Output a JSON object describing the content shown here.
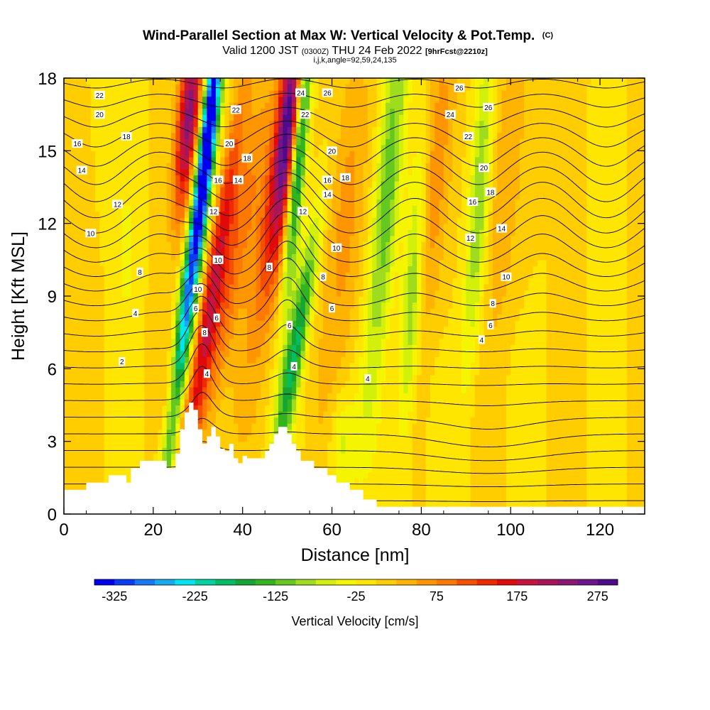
{
  "chart_data": {
    "type": "heatmap",
    "title": "Wind-Parallel Section at Max W: Vertical Velocity & Pot.Temp.",
    "title_mark": "(C)",
    "subtitle_main": "Valid 1200 JST ",
    "subtitle_small": "(0300Z)",
    "subtitle_main2": " THU 24 Feb 2022 ",
    "subtitle_fcst": "[9hrFcst@2210z]",
    "subtitle2": "i,j,k,angle=92,59,24,135",
    "xlabel": "Distance [nm]",
    "ylabel": "Height [Kft MSL]",
    "xlim": [
      0,
      130
    ],
    "ylim": [
      0,
      18
    ],
    "x_ticks": [
      0,
      20,
      40,
      60,
      80,
      100,
      120
    ],
    "y_ticks": [
      0,
      3,
      6,
      9,
      12,
      15,
      18
    ],
    "x_tick_labels": [
      "0",
      "20",
      "40",
      "60",
      "80",
      "100",
      "120"
    ],
    "y_tick_labels": [
      "0",
      "3",
      "6",
      "9",
      "12",
      "15",
      "18"
    ],
    "colorbar": {
      "label": "Vertical Velocity [cm/s]",
      "min": -350,
      "max": 300,
      "tick_values": [
        -325,
        -225,
        -125,
        -25,
        75,
        175,
        275
      ],
      "tick_labels": [
        "-325",
        "-225",
        "-125",
        "-25",
        "75",
        "175",
        "275"
      ],
      "colors": [
        "#0000f0",
        "#0a3cf5",
        "#1478f5",
        "#14aaf0",
        "#00e6f0",
        "#00d2a0",
        "#00be64",
        "#14a532",
        "#32b41e",
        "#64c81e",
        "#a0dc1e",
        "#d2f00a",
        "#f5f500",
        "#ffe600",
        "#ffcd00",
        "#ffb400",
        "#ff9600",
        "#ff7800",
        "#f55000",
        "#f02800",
        "#e10a0a",
        "#c8143c",
        "#aa145a",
        "#8c1473",
        "#6e148c",
        "#500a8c"
      ]
    },
    "terrain": [
      [
        0,
        1.0
      ],
      [
        5,
        1.0
      ],
      [
        5,
        1.3
      ],
      [
        10,
        1.3
      ],
      [
        10,
        1.6
      ],
      [
        14,
        1.6
      ],
      [
        14,
        1.3
      ],
      [
        15,
        1.3
      ],
      [
        15,
        1.9
      ],
      [
        17,
        1.9
      ],
      [
        17,
        2.2
      ],
      [
        23,
        2.2
      ],
      [
        23,
        1.9
      ],
      [
        25,
        1.9
      ],
      [
        25,
        2.5
      ],
      [
        26,
        2.5
      ],
      [
        26,
        3.5
      ],
      [
        27,
        3.5
      ],
      [
        27,
        4.2
      ],
      [
        28,
        4.2
      ],
      [
        28,
        4.6
      ],
      [
        29,
        4.6
      ],
      [
        29,
        4.3
      ],
      [
        30,
        4.3
      ],
      [
        30,
        3.5
      ],
      [
        31,
        3.5
      ],
      [
        31,
        2.9
      ],
      [
        32,
        2.9
      ],
      [
        32,
        3.2
      ],
      [
        33,
        3.2
      ],
      [
        33,
        3.6
      ],
      [
        34,
        3.6
      ],
      [
        34,
        3.2
      ],
      [
        35,
        3.2
      ],
      [
        35,
        2.7
      ],
      [
        36,
        2.7
      ],
      [
        36,
        2.6
      ],
      [
        37,
        2.6
      ],
      [
        37,
        2.9
      ],
      [
        38,
        2.9
      ],
      [
        38,
        2.3
      ],
      [
        39,
        2.3
      ],
      [
        39,
        2.1
      ],
      [
        40,
        2.1
      ],
      [
        40,
        2.4
      ],
      [
        41,
        2.4
      ],
      [
        41,
        2.3
      ],
      [
        45,
        2.3
      ],
      [
        45,
        2.6
      ],
      [
        46,
        2.6
      ],
      [
        46,
        2.9
      ],
      [
        47,
        2.9
      ],
      [
        47,
        3.3
      ],
      [
        48,
        3.3
      ],
      [
        48,
        3.6
      ],
      [
        50,
        3.6
      ],
      [
        50,
        3.3
      ],
      [
        51,
        3.3
      ],
      [
        51,
        2.9
      ],
      [
        52,
        2.9
      ],
      [
        52,
        2.6
      ],
      [
        53,
        2.6
      ],
      [
        53,
        2.2
      ],
      [
        56,
        2.2
      ],
      [
        56,
        1.9
      ],
      [
        59,
        1.9
      ],
      [
        59,
        1.6
      ],
      [
        61,
        1.6
      ],
      [
        61,
        1.3
      ],
      [
        64,
        1.3
      ],
      [
        64,
        1.0
      ],
      [
        67,
        1.0
      ],
      [
        67,
        0.6
      ],
      [
        70,
        0.6
      ],
      [
        70,
        0.3
      ],
      [
        130,
        0.3
      ]
    ],
    "w_features": [
      {
        "x": 29.5,
        "z": 11.5,
        "sx": 1.4,
        "sz": 7.0,
        "w": -320,
        "tilt": 0.3
      },
      {
        "x": 33.0,
        "z": 9.0,
        "sx": 1.6,
        "sz": 6.0,
        "w": 170,
        "tilt": 0.38
      },
      {
        "x": 37.0,
        "z": 9.5,
        "sx": 2.2,
        "sz": 6.0,
        "w": 90,
        "tilt": 0.45
      },
      {
        "x": 28.0,
        "z": 16.5,
        "sx": 1.8,
        "sz": 3.0,
        "w": 240,
        "tilt": 0.2
      },
      {
        "x": 32.5,
        "z": 16.0,
        "sx": 1.2,
        "sz": 3.0,
        "w": -160,
        "tilt": 0.2
      },
      {
        "x": 52.5,
        "z": 15.0,
        "sx": 1.3,
        "sz": 4.0,
        "w": -260,
        "tilt": 0.2
      },
      {
        "x": 50.5,
        "z": 16.5,
        "sx": 1.8,
        "sz": 3.0,
        "w": 250,
        "tilt": 0.25
      },
      {
        "x": 47.0,
        "z": 12.0,
        "sx": 3.0,
        "sz": 4.0,
        "w": 120,
        "tilt": 0.35
      },
      {
        "x": 52.0,
        "z": 7.0,
        "sx": 1.5,
        "sz": 3.5,
        "w": -180,
        "tilt": 0.4
      },
      {
        "x": 72.5,
        "z": 13.5,
        "sx": 2.0,
        "sz": 6.0,
        "w": -120,
        "tilt": 0.2
      },
      {
        "x": 78.0,
        "z": 9.0,
        "sx": 1.6,
        "sz": 4.5,
        "w": -110,
        "tilt": 0.15
      },
      {
        "x": 93.0,
        "z": 13.0,
        "sx": 1.6,
        "sz": 5.0,
        "w": -100,
        "tilt": 0.15
      },
      {
        "x": 63.0,
        "z": 12.0,
        "sx": 3.0,
        "sz": 5.0,
        "w": 60,
        "tilt": 0.2
      },
      {
        "x": 83.0,
        "z": 14.0,
        "sx": 2.5,
        "sz": 5.0,
        "w": 70,
        "tilt": 0.2
      },
      {
        "x": 99.0,
        "z": 14.0,
        "sx": 2.5,
        "sz": 5.0,
        "w": 50,
        "tilt": 0.2
      },
      {
        "x": 25.0,
        "z": 5.0,
        "sx": 2.0,
        "sz": 1.5,
        "w": 60,
        "tilt": 0.0
      },
      {
        "x": 62.0,
        "z": 3.0,
        "sx": 2.0,
        "sz": 1.5,
        "w": -60,
        "tilt": 0.0
      },
      {
        "x": 14.0,
        "z": 11.0,
        "sx": 1.5,
        "sz": 2.0,
        "w": -40,
        "tilt": 0.0
      }
    ],
    "contour_levels": [
      2,
      3,
      4,
      5,
      6,
      7,
      8,
      9,
      10,
      11,
      12,
      13,
      14,
      15,
      16,
      17,
      18,
      19,
      20,
      21,
      22,
      23,
      24,
      25,
      26,
      27,
      28
    ],
    "contour_labels": [
      {
        "x": 4,
        "z": 14.2,
        "text": "14"
      },
      {
        "x": 3,
        "z": 15.3,
        "text": "16"
      },
      {
        "x": 6,
        "z": 11.6,
        "text": "10"
      },
      {
        "x": 8,
        "z": 17.3,
        "text": "22"
      },
      {
        "x": 8,
        "z": 16.5,
        "text": "20"
      },
      {
        "x": 14,
        "z": 15.6,
        "text": "18"
      },
      {
        "x": 12,
        "z": 12.8,
        "text": "12"
      },
      {
        "x": 17,
        "z": 10.0,
        "text": "8"
      },
      {
        "x": 16,
        "z": 8.3,
        "text": "4"
      },
      {
        "x": 13,
        "z": 6.3,
        "text": "2"
      },
      {
        "x": 30,
        "z": 9.3,
        "text": "10"
      },
      {
        "x": 29.5,
        "z": 8.5,
        "text": "6"
      },
      {
        "x": 34.2,
        "z": 8.1,
        "text": "6"
      },
      {
        "x": 31.5,
        "z": 7.5,
        "text": "8"
      },
      {
        "x": 32,
        "z": 5.8,
        "text": "4"
      },
      {
        "x": 34.5,
        "z": 10.5,
        "text": "10"
      },
      {
        "x": 33.5,
        "z": 12.5,
        "text": "12"
      },
      {
        "x": 34.5,
        "z": 13.8,
        "text": "16"
      },
      {
        "x": 39,
        "z": 13.8,
        "text": "14"
      },
      {
        "x": 37,
        "z": 15.3,
        "text": "20"
      },
      {
        "x": 41,
        "z": 14.7,
        "text": "18"
      },
      {
        "x": 38.5,
        "z": 16.7,
        "text": "22"
      },
      {
        "x": 46,
        "z": 10.2,
        "text": "8"
      },
      {
        "x": 50.5,
        "z": 7.8,
        "text": "6"
      },
      {
        "x": 51.5,
        "z": 6.1,
        "text": "4"
      },
      {
        "x": 53,
        "z": 17.4,
        "text": "24"
      },
      {
        "x": 54,
        "z": 16.5,
        "text": "22"
      },
      {
        "x": 59,
        "z": 17.4,
        "text": "26"
      },
      {
        "x": 60,
        "z": 15.0,
        "text": "20"
      },
      {
        "x": 59,
        "z": 13.8,
        "text": "16"
      },
      {
        "x": 63,
        "z": 13.9,
        "text": "18"
      },
      {
        "x": 59,
        "z": 13.2,
        "text": "14"
      },
      {
        "x": 53.5,
        "z": 12.5,
        "text": "12"
      },
      {
        "x": 61,
        "z": 11.0,
        "text": "10"
      },
      {
        "x": 58,
        "z": 9.8,
        "text": "8"
      },
      {
        "x": 60,
        "z": 8.5,
        "text": "6"
      },
      {
        "x": 68,
        "z": 5.6,
        "text": "4"
      },
      {
        "x": 88.5,
        "z": 17.6,
        "text": "26"
      },
      {
        "x": 95,
        "z": 16.8,
        "text": "26"
      },
      {
        "x": 86.5,
        "z": 16.5,
        "text": "24"
      },
      {
        "x": 90.5,
        "z": 15.6,
        "text": "22"
      },
      {
        "x": 94,
        "z": 14.3,
        "text": "20"
      },
      {
        "x": 95.5,
        "z": 13.3,
        "text": "18"
      },
      {
        "x": 91.5,
        "z": 12.9,
        "text": "16"
      },
      {
        "x": 98,
        "z": 11.8,
        "text": "14"
      },
      {
        "x": 91,
        "z": 11.4,
        "text": "12"
      },
      {
        "x": 99,
        "z": 9.8,
        "text": "10"
      },
      {
        "x": 96,
        "z": 8.7,
        "text": "8"
      },
      {
        "x": 95.5,
        "z": 7.8,
        "text": "6"
      },
      {
        "x": 93.5,
        "z": 7.2,
        "text": "4"
      }
    ]
  }
}
